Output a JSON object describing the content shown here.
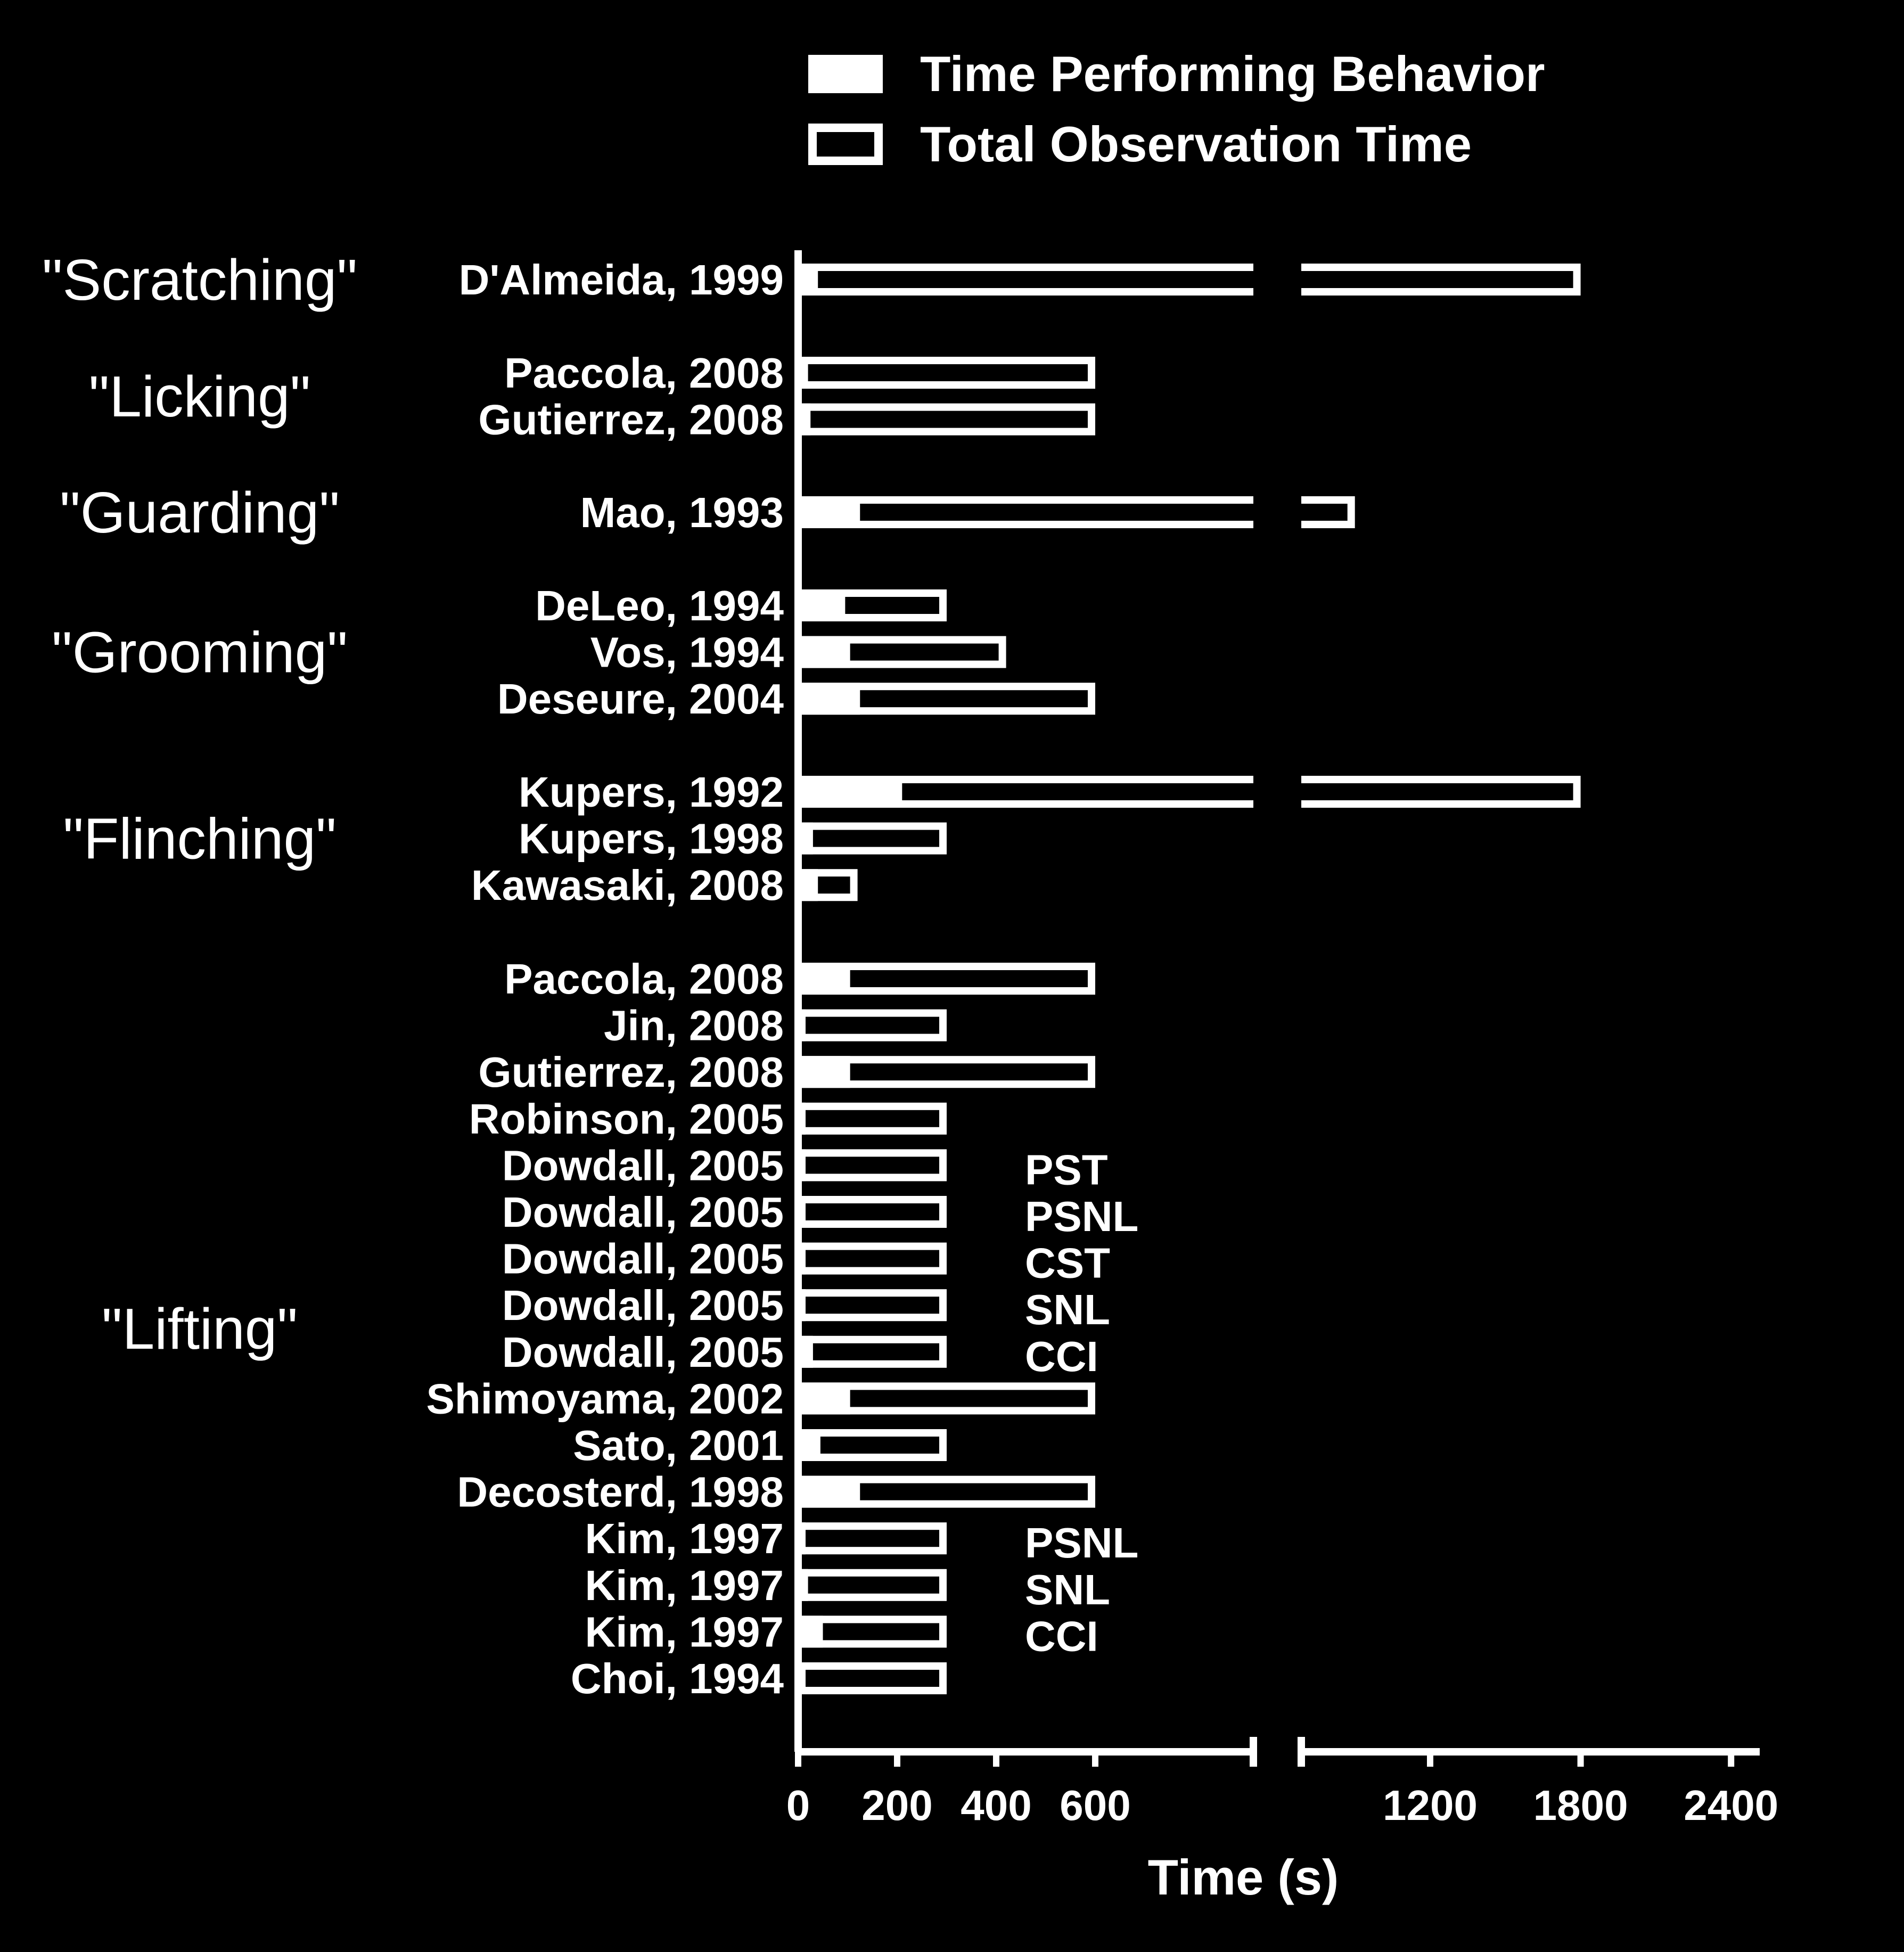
{
  "chart_data": {
    "type": "bar",
    "orientation": "horizontal",
    "xlabel": "Time (s)",
    "x_ticks": [
      "0",
      "200",
      "400",
      "600",
      "1200",
      "1800",
      "2400"
    ],
    "x_axis_break": {
      "from": 650,
      "to": 650
    },
    "legend": {
      "placement": "top-right",
      "entries": [
        {
          "name": "Time Performing Behavior",
          "style": "filled"
        },
        {
          "name": "Total Observation Time",
          "style": "outline"
        }
      ]
    },
    "colors": {
      "background": "#000000",
      "foreground": "#ffffff"
    },
    "categories": [
      "\"Scratching\"",
      "\"Licking\"",
      "\"Guarding\"",
      "\"Grooming\"",
      "\"Flinching\"",
      "\"Lifting\""
    ],
    "studies": [
      {
        "category": 0,
        "label": "D'Almeida, 1999",
        "behavior": 40,
        "total": 1800,
        "note": ""
      },
      {
        "category": 1,
        "label": "Paccola, 2008",
        "behavior": 20,
        "total": 600,
        "note": ""
      },
      {
        "category": 1,
        "label": "Gutierrez, 2008",
        "behavior": 25,
        "total": 600,
        "note": ""
      },
      {
        "category": 2,
        "label": "Mao, 1993",
        "behavior": 125,
        "total": 900,
        "note": ""
      },
      {
        "category": 3,
        "label": "DeLeo, 1994",
        "behavior": 95,
        "total": 300,
        "note": ""
      },
      {
        "category": 3,
        "label": "Vos, 1994",
        "behavior": 105,
        "total": 420,
        "note": ""
      },
      {
        "category": 3,
        "label": "Deseure, 2004",
        "behavior": 125,
        "total": 600,
        "note": ""
      },
      {
        "category": 4,
        "label": "Kupers, 1992",
        "behavior": 210,
        "total": 1800,
        "note": ""
      },
      {
        "category": 4,
        "label": "Kupers, 1998",
        "behavior": 30,
        "total": 300,
        "note": ""
      },
      {
        "category": 4,
        "label": "Kawasaki, 2008",
        "behavior": 40,
        "total": 120,
        "note": ""
      },
      {
        "category": 5,
        "label": "Paccola, 2008",
        "behavior": 105,
        "total": 600,
        "note": ""
      },
      {
        "category": 5,
        "label": "Jin, 2008",
        "behavior": 5,
        "total": 300,
        "note": ""
      },
      {
        "category": 5,
        "label": "Gutierrez, 2008",
        "behavior": 105,
        "total": 600,
        "note": ""
      },
      {
        "category": 5,
        "label": "Robinson, 2005",
        "behavior": 15,
        "total": 300,
        "note": ""
      },
      {
        "category": 5,
        "label": "Dowdall, 2005",
        "behavior": 2,
        "total": 300,
        "note": "PST"
      },
      {
        "category": 5,
        "label": "Dowdall, 2005",
        "behavior": 5,
        "total": 300,
        "note": "PSNL"
      },
      {
        "category": 5,
        "label": "Dowdall, 2005",
        "behavior": 10,
        "total": 300,
        "note": "CST"
      },
      {
        "category": 5,
        "label": "Dowdall, 2005",
        "behavior": 10,
        "total": 300,
        "note": "SNL"
      },
      {
        "category": 5,
        "label": "Dowdall, 2005",
        "behavior": 30,
        "total": 300,
        "note": "CCI"
      },
      {
        "category": 5,
        "label": "Shimoyama, 2002",
        "behavior": 105,
        "total": 600,
        "note": ""
      },
      {
        "category": 5,
        "label": "Sato, 2001",
        "behavior": 45,
        "total": 300,
        "note": ""
      },
      {
        "category": 5,
        "label": "Decosterd, 1998",
        "behavior": 125,
        "total": 600,
        "note": ""
      },
      {
        "category": 5,
        "label": "Kim, 1997",
        "behavior": 10,
        "total": 300,
        "note": "PSNL"
      },
      {
        "category": 5,
        "label": "Kim, 1997",
        "behavior": 20,
        "total": 300,
        "note": "SNL"
      },
      {
        "category": 5,
        "label": "Kim, 1997",
        "behavior": 50,
        "total": 300,
        "note": "CCI"
      },
      {
        "category": 5,
        "label": "Choi, 1994",
        "behavior": 5,
        "total": 300,
        "note": ""
      }
    ]
  }
}
